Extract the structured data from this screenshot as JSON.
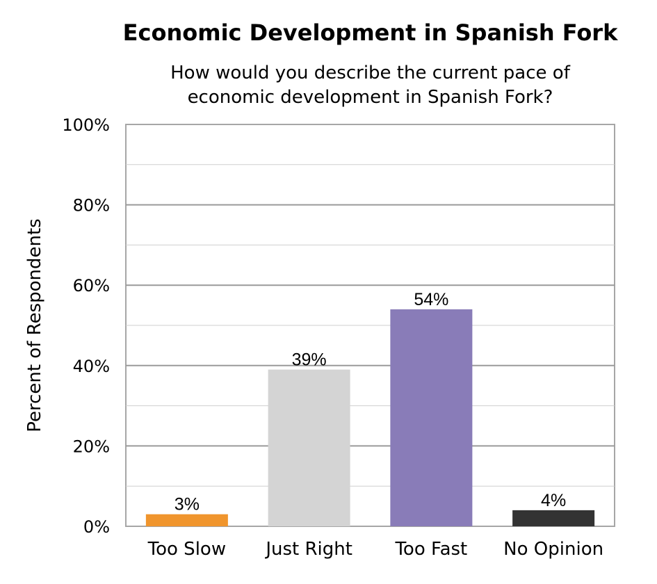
{
  "chart_data": {
    "type": "bar",
    "title": "Economic Development in Spanish Fork",
    "subtitle": "How would you describe the current pace of economic development in Spanish Fork?",
    "xlabel": "",
    "ylabel": "Percent of Respondents",
    "ylim": [
      0,
      100
    ],
    "yticks": [
      0,
      20,
      40,
      60,
      80,
      100
    ],
    "ytick_suffix": "%",
    "grid": true,
    "categories": [
      "Too Slow",
      "Just Right",
      "Too Fast",
      "No Opinion"
    ],
    "values": [
      3,
      39,
      54,
      4
    ],
    "data_labels": [
      "3%",
      "39%",
      "54%",
      "4%"
    ],
    "colors": [
      "#f0952d",
      "#d4d4d4",
      "#897cb8",
      "#333333"
    ]
  }
}
